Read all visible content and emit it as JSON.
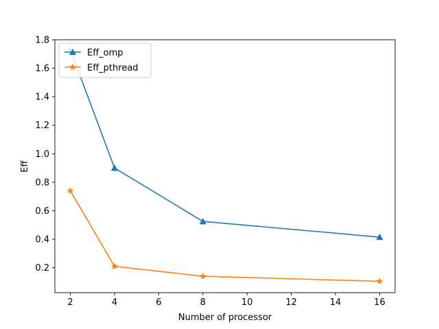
{
  "chart_data": {
    "type": "line",
    "title": "",
    "xlabel": "Number of processor",
    "ylabel": "Eff",
    "x": [
      2,
      4,
      8,
      16
    ],
    "xlim": [
      1.3,
      16.7
    ],
    "ylim": [
      0.025,
      1.8
    ],
    "xticks": [
      2,
      4,
      6,
      8,
      10,
      12,
      14,
      16
    ],
    "xtick_labels": [
      "2",
      "4",
      "6",
      "8",
      "10",
      "12",
      "14",
      "16"
    ],
    "yticks": [
      0.2,
      0.4,
      0.6,
      0.8,
      1.0,
      1.2,
      1.4,
      1.6,
      1.8
    ],
    "ytick_labels": [
      "0.2",
      "0.4",
      "0.6",
      "0.8",
      "1.0",
      "1.2",
      "1.4",
      "1.6",
      "1.8"
    ],
    "grid": false,
    "legend_position": "top-left",
    "series": [
      {
        "name": "Eff_omp",
        "values": [
          1.73,
          0.9,
          0.525,
          0.415
        ],
        "color": "#1f77b4",
        "marker": "triangle"
      },
      {
        "name": "Eff_pthread",
        "values": [
          0.74,
          0.21,
          0.14,
          0.105
        ],
        "color": "#ff7f0e",
        "marker": "star"
      }
    ]
  }
}
